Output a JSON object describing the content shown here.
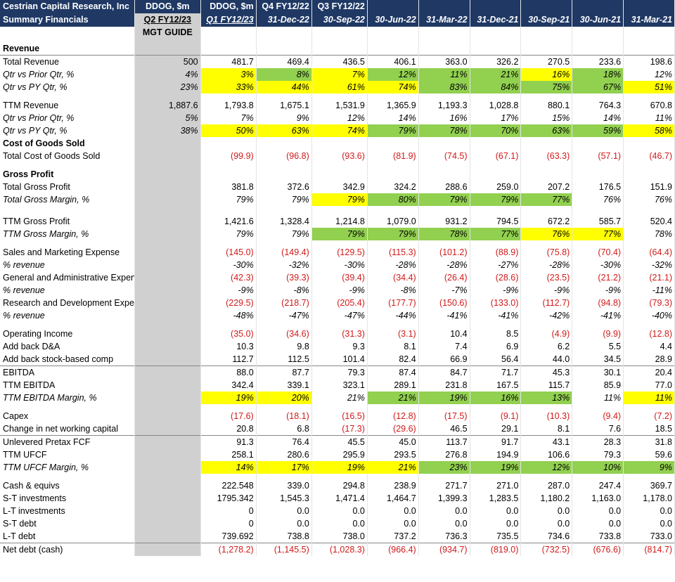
{
  "header": {
    "title_line1": "Cestrian Capital Research, Inc",
    "title_line2": "Summary Financials",
    "columns": [
      {
        "r1": "DDOG, $m",
        "r2": "Q2 FY12/23"
      },
      {
        "r1": "DDOG, $m",
        "r2": "Q1 FY12/23"
      },
      {
        "r1": "Q4 FY12/22",
        "r2": "31-Dec-22"
      },
      {
        "r1": "Q3 FY12/22",
        "r2": "30-Sep-22"
      },
      {
        "r1": "",
        "r2": "30-Jun-22"
      },
      {
        "r1": "",
        "r2": "31-Mar-22"
      },
      {
        "r1": "",
        "r2": "31-Dec-21"
      },
      {
        "r1": "",
        "r2": "30-Sep-21"
      },
      {
        "r1": "",
        "r2": "30-Jun-21"
      },
      {
        "r1": "",
        "r2": "31-Mar-21"
      }
    ],
    "mgt_guide": "MGT GUIDE"
  },
  "colors": {
    "header_bg": "#1f3864",
    "highlight_yellow": "#ffff00",
    "highlight_green": "#92d050",
    "negative_text": "#d11a1a",
    "guide_column": "#d0d0d0"
  },
  "rows": [
    {
      "type": "section",
      "label": "Revenue"
    },
    {
      "type": "data",
      "label": "Total Revenue",
      "cells": [
        "500",
        "481.7",
        "469.4",
        "436.5",
        "406.1",
        "363.0",
        "326.2",
        "270.5",
        "233.6",
        "198.6"
      ],
      "topline": true
    },
    {
      "type": "data",
      "italic": true,
      "label": "Qtr vs Prior Qtr, %",
      "cells": [
        "4%",
        "3%",
        "8%",
        "7%",
        "12%",
        "11%",
        "21%",
        "16%",
        "18%",
        "12%"
      ],
      "fills": [
        "",
        "y",
        "gr",
        "y",
        "gr",
        "gr",
        "gr",
        "y",
        "gr",
        ""
      ]
    },
    {
      "type": "data",
      "italic": true,
      "label": "Qtr vs PY Qtr, %",
      "cells": [
        "23%",
        "33%",
        "44%",
        "61%",
        "74%",
        "83%",
        "84%",
        "75%",
        "67%",
        "51%"
      ],
      "fills": [
        "",
        "y",
        "y",
        "y",
        "y",
        "gr",
        "gr",
        "gr",
        "gr",
        "y"
      ]
    },
    {
      "type": "spacer"
    },
    {
      "type": "data",
      "label": "TTM Revenue",
      "cells": [
        "1,887.6",
        "1,793.8",
        "1,675.1",
        "1,531.9",
        "1,365.9",
        "1,193.3",
        "1,028.8",
        "880.1",
        "764.3",
        "670.8"
      ]
    },
    {
      "type": "data",
      "italic": true,
      "label": "Qtr vs Prior Qtr, %",
      "cells": [
        "5%",
        "7%",
        "9%",
        "12%",
        "14%",
        "16%",
        "17%",
        "15%",
        "14%",
        "11%"
      ]
    },
    {
      "type": "data",
      "italic": true,
      "label": "Qtr vs PY Qtr, %",
      "cells": [
        "38%",
        "50%",
        "63%",
        "74%",
        "79%",
        "78%",
        "70%",
        "63%",
        "59%",
        "58%"
      ],
      "fills": [
        "",
        "y",
        "y",
        "y",
        "gr",
        "gr",
        "gr",
        "gr",
        "gr",
        "y"
      ]
    },
    {
      "type": "section",
      "label": "Cost of Goods Sold"
    },
    {
      "type": "data",
      "label": "Total Cost of Goods Sold",
      "cells": [
        "",
        "(99.9)",
        "(96.8)",
        "(93.6)",
        "(81.9)",
        "(74.5)",
        "(67.1)",
        "(63.3)",
        "(57.1)",
        "(46.7)"
      ],
      "neg": true
    },
    {
      "type": "spacer"
    },
    {
      "type": "section",
      "label": "Gross Profit"
    },
    {
      "type": "data",
      "label": "Total Gross Profit",
      "cells": [
        "",
        "381.8",
        "372.6",
        "342.9",
        "324.2",
        "288.6",
        "259.0",
        "207.2",
        "176.5",
        "151.9"
      ]
    },
    {
      "type": "data",
      "italic": true,
      "label": "Total Gross Margin, %",
      "cells": [
        "",
        "79%",
        "79%",
        "79%",
        "80%",
        "79%",
        "79%",
        "77%",
        "76%",
        "76%"
      ],
      "fills": [
        "",
        "",
        "",
        "y",
        "gr",
        "gr",
        "gr",
        "gr",
        "",
        ""
      ]
    },
    {
      "type": "spacer2"
    },
    {
      "type": "data",
      "label": "TTM Gross Profit",
      "cells": [
        "",
        "1,421.6",
        "1,328.4",
        "1,214.8",
        "1,079.0",
        "931.2",
        "794.5",
        "672.2",
        "585.7",
        "520.4"
      ]
    },
    {
      "type": "data",
      "italic": true,
      "label": "TTM Gross Margin, %",
      "cells": [
        "",
        "79%",
        "79%",
        "79%",
        "79%",
        "78%",
        "77%",
        "76%",
        "77%",
        "78%"
      ],
      "fills": [
        "",
        "",
        "",
        "gr",
        "gr",
        "gr",
        "gr",
        "y",
        "y",
        ""
      ]
    },
    {
      "type": "spacer"
    },
    {
      "type": "data",
      "label": "Sales and Marketing Expense",
      "cells": [
        "",
        "(145.0)",
        "(149.4)",
        "(129.5)",
        "(115.3)",
        "(101.2)",
        "(88.9)",
        "(75.8)",
        "(70.4)",
        "(64.4)"
      ],
      "neg": true
    },
    {
      "type": "data",
      "italic": true,
      "label": "% revenue",
      "cells": [
        "",
        "-30%",
        "-32%",
        "-30%",
        "-28%",
        "-28%",
        "-27%",
        "-28%",
        "-30%",
        "-32%"
      ]
    },
    {
      "type": "data",
      "label": "General and Administrative Expense",
      "cells": [
        "",
        "(42.3)",
        "(39.3)",
        "(39.4)",
        "(34.4)",
        "(26.4)",
        "(28.6)",
        "(23.5)",
        "(21.2)",
        "(21.1)"
      ],
      "neg": true
    },
    {
      "type": "data",
      "italic": true,
      "label": "% revenue",
      "cells": [
        "",
        "-9%",
        "-8%",
        "-9%",
        "-8%",
        "-7%",
        "-9%",
        "-9%",
        "-9%",
        "-11%"
      ]
    },
    {
      "type": "data",
      "label": "Research and Development Expense",
      "cells": [
        "",
        "(229.5)",
        "(218.7)",
        "(205.4)",
        "(177.7)",
        "(150.6)",
        "(133.0)",
        "(112.7)",
        "(94.8)",
        "(79.3)"
      ],
      "neg": true
    },
    {
      "type": "data",
      "italic": true,
      "label": "% revenue",
      "cells": [
        "",
        "-48%",
        "-47%",
        "-47%",
        "-44%",
        "-41%",
        "-41%",
        "-42%",
        "-41%",
        "-40%"
      ]
    },
    {
      "type": "spacer"
    },
    {
      "type": "data",
      "label": "Operating Income",
      "cells": [
        "",
        "(35.0)",
        "(34.6)",
        "(31.3)",
        "(3.1)",
        "10.4",
        "8.5",
        "(4.9)",
        "(9.9)",
        "(12.8)"
      ],
      "negcells": [
        false,
        true,
        true,
        true,
        true,
        false,
        false,
        true,
        true,
        true
      ]
    },
    {
      "type": "data",
      "label": "Add back D&A",
      "cells": [
        "",
        "10.3",
        "9.8",
        "9.3",
        "8.1",
        "7.4",
        "6.9",
        "6.2",
        "5.5",
        "4.4"
      ]
    },
    {
      "type": "data",
      "label": "Add back stock-based comp",
      "cells": [
        "",
        "112.7",
        "112.5",
        "101.4",
        "82.4",
        "66.9",
        "56.4",
        "44.0",
        "34.5",
        "28.9"
      ]
    },
    {
      "type": "data",
      "label": "EBITDA",
      "cells": [
        "",
        "88.0",
        "87.7",
        "79.3",
        "87.4",
        "84.7",
        "71.7",
        "45.3",
        "30.1",
        "20.4"
      ],
      "topline": true
    },
    {
      "type": "data",
      "label": "TTM EBITDA",
      "cells": [
        "",
        "342.4",
        "339.1",
        "323.1",
        "289.1",
        "231.8",
        "167.5",
        "115.7",
        "85.9",
        "77.0"
      ]
    },
    {
      "type": "data",
      "italic": true,
      "label": "TTM EBITDA Margin, %",
      "cells": [
        "",
        "19%",
        "20%",
        "21%",
        "21%",
        "19%",
        "16%",
        "13%",
        "11%",
        "11%"
      ],
      "fills": [
        "",
        "y",
        "y",
        "",
        "gr",
        "gr",
        "gr",
        "gr",
        "",
        "y"
      ]
    },
    {
      "type": "spacer"
    },
    {
      "type": "data",
      "label": "Capex",
      "cells": [
        "",
        "(17.6)",
        "(18.1)",
        "(16.5)",
        "(12.8)",
        "(17.5)",
        "(9.1)",
        "(10.3)",
        "(9.4)",
        "(7.2)"
      ],
      "neg": true
    },
    {
      "type": "data",
      "label": "Change in net working capital",
      "cells": [
        "",
        "20.8",
        "6.8",
        "(17.3)",
        "(29.6)",
        "46.5",
        "29.1",
        "8.1",
        "7.6",
        "18.5"
      ],
      "negcells": [
        false,
        false,
        false,
        true,
        true,
        false,
        false,
        false,
        false,
        false
      ]
    },
    {
      "type": "data",
      "label": "Unlevered Pretax FCF",
      "cells": [
        "",
        "91.3",
        "76.4",
        "45.5",
        "45.0",
        "113.7",
        "91.7",
        "43.1",
        "28.3",
        "31.8"
      ],
      "topline": true
    },
    {
      "type": "data",
      "label": "TTM UFCF",
      "cells": [
        "",
        "258.1",
        "280.6",
        "295.9",
        "293.5",
        "276.8",
        "194.9",
        "106.6",
        "79.3",
        "59.6"
      ]
    },
    {
      "type": "data",
      "italic": true,
      "label": "TTM UFCF Margin, %",
      "cells": [
        "",
        "14%",
        "17%",
        "19%",
        "21%",
        "23%",
        "19%",
        "12%",
        "10%",
        "9%"
      ],
      "fills": [
        "",
        "y",
        "y",
        "y",
        "y",
        "gr",
        "gr",
        "gr",
        "gr",
        "gr"
      ]
    },
    {
      "type": "spacer"
    },
    {
      "type": "data",
      "label": "Cash & equivs",
      "cells": [
        "",
        "222.548",
        "339.0",
        "294.8",
        "238.9",
        "271.7",
        "271.0",
        "287.0",
        "247.4",
        "369.7"
      ]
    },
    {
      "type": "data",
      "label": "S-T investments",
      "cells": [
        "",
        "1795.342",
        "1,545.3",
        "1,471.4",
        "1,464.7",
        "1,399.3",
        "1,283.5",
        "1,180.2",
        "1,163.0",
        "1,178.0"
      ]
    },
    {
      "type": "data",
      "label": "L-T investments",
      "cells": [
        "",
        "0",
        "0.0",
        "0.0",
        "0.0",
        "0.0",
        "0.0",
        "0.0",
        "0.0",
        "0.0"
      ]
    },
    {
      "type": "data",
      "label": "S-T debt",
      "cells": [
        "",
        "0",
        "0.0",
        "0.0",
        "0.0",
        "0.0",
        "0.0",
        "0.0",
        "0.0",
        "0.0"
      ]
    },
    {
      "type": "data",
      "label": "L-T debt",
      "cells": [
        "",
        "739.692",
        "738.8",
        "738.0",
        "737.2",
        "736.3",
        "735.5",
        "734.6",
        "733.8",
        "733.0"
      ]
    },
    {
      "type": "data",
      "label": "Net debt (cash)",
      "cells": [
        "",
        "(1,278.2)",
        "(1,145.5)",
        "(1,028.3)",
        "(966.4)",
        "(934.7)",
        "(819.0)",
        "(732.5)",
        "(676.6)",
        "(814.7)"
      ],
      "neg": true,
      "topline": true
    }
  ]
}
